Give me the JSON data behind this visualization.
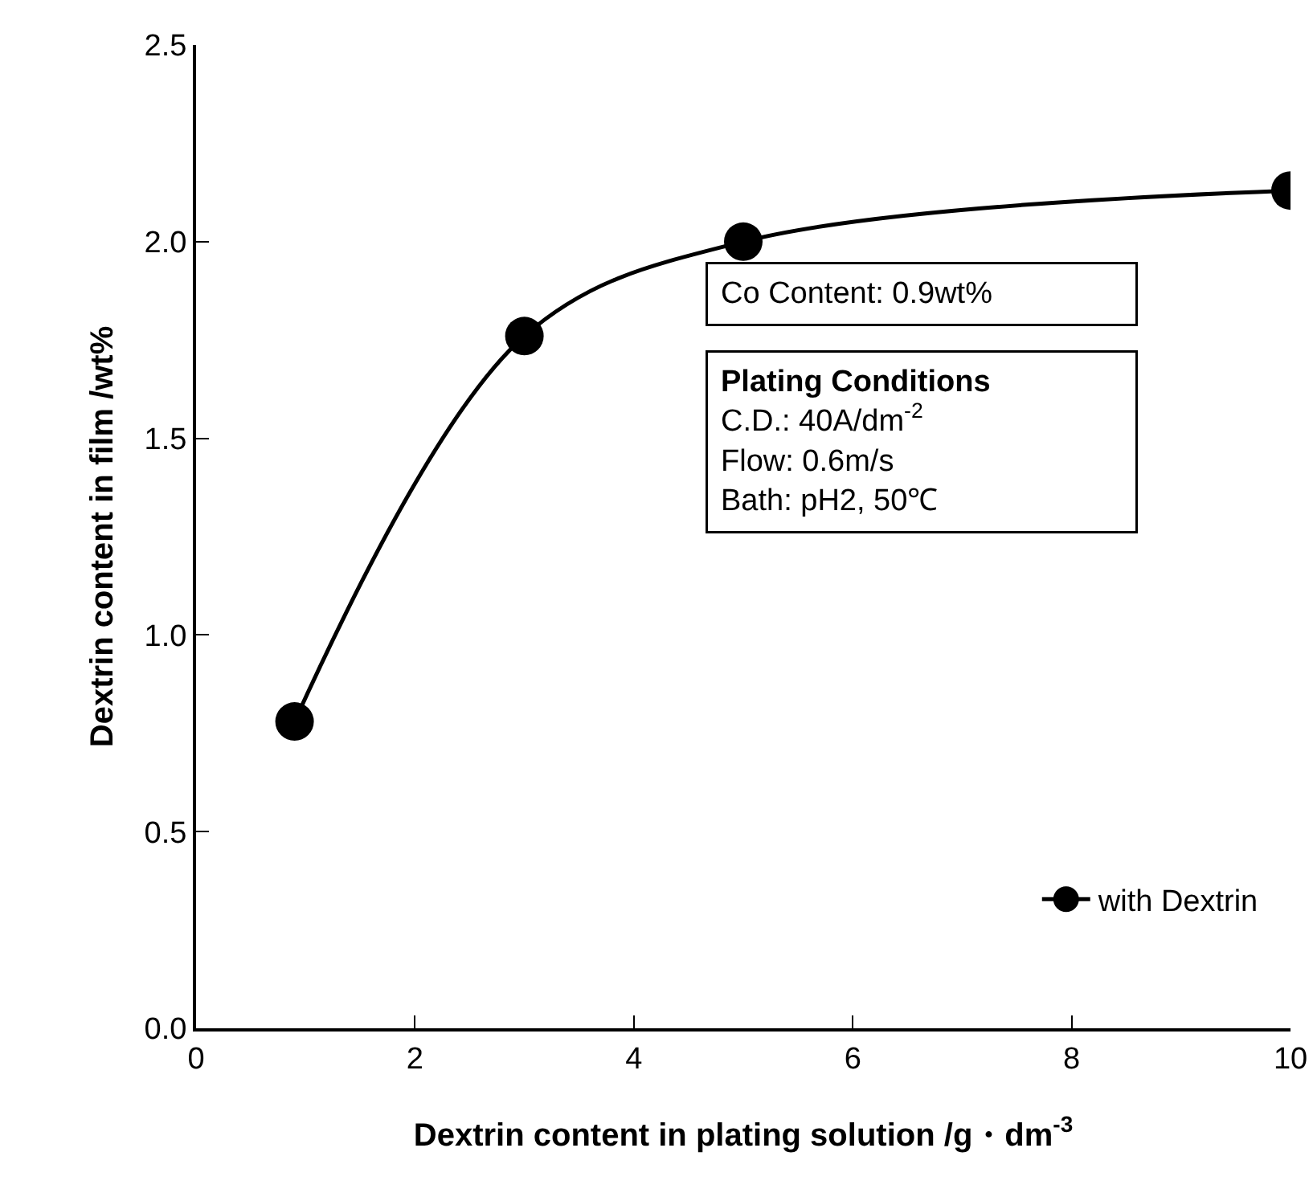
{
  "chart_data": {
    "type": "line",
    "xlabel": "Dextrin content in plating solution /g・dm$^{-3}$",
    "ylabel": "Dextrin content in film /wt%",
    "x": [
      0.9,
      3,
      5,
      10
    ],
    "series": [
      {
        "name": "with Dextrin",
        "color": "#000000",
        "values": [
          0.78,
          1.76,
          2.0,
          2.13
        ]
      }
    ],
    "xlim": [
      0,
      10
    ],
    "xticks": [
      0,
      2,
      4,
      6,
      8,
      10
    ],
    "ylim": [
      0,
      2.5
    ],
    "yticks": [
      {
        "value": 0,
        "label": "0.0"
      },
      0.5,
      {
        "value": 1,
        "label": "1.0"
      },
      1.5,
      {
        "value": 2,
        "label": "2.0"
      },
      2.5
    ],
    "grid": false,
    "legend": "bottom right",
    "marker": "circle",
    "line_style": "solid",
    "annotations": [
      "Co Content: 0.9wt%",
      "Plating Conditions",
      "C.D.: 40A/dm$^{-2}$",
      "Flow: 0.6m/s",
      "Bath: pH2, 50℃"
    ]
  }
}
